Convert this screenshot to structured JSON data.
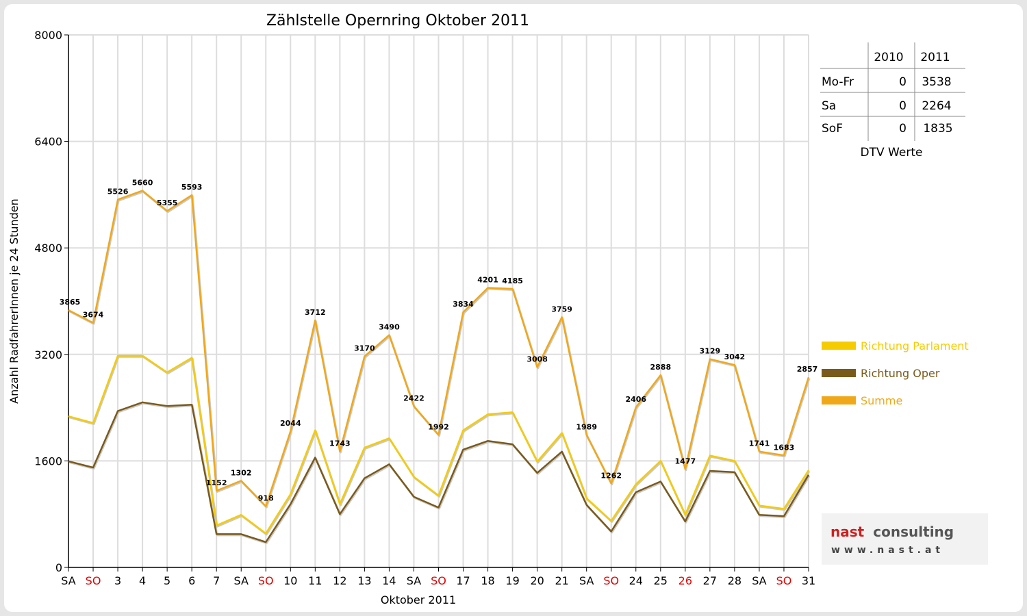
{
  "chart_data": {
    "type": "line",
    "title": "Zählstelle Opernring Oktober 2011",
    "xlabel": "Oktober 2011",
    "ylabel": "Anzahl RadfahrerInnen je 24 Stunden",
    "ylim": [
      0,
      8000
    ],
    "yticks": [
      0,
      1600,
      3200,
      4800,
      6400,
      8000
    ],
    "grid": true,
    "legend_position": "right",
    "categories": [
      "SA",
      "SO",
      "3",
      "4",
      "5",
      "6",
      "7",
      "SA",
      "SO",
      "10",
      "11",
      "12",
      "13",
      "14",
      "SA",
      "SO",
      "17",
      "18",
      "19",
      "20",
      "21",
      "SA",
      "SO",
      "24",
      "25",
      "26",
      "27",
      "28",
      "SA",
      "SO",
      "31"
    ],
    "red_categories": [
      1,
      8,
      15,
      22,
      25,
      29
    ],
    "series": [
      {
        "name": "Richtung Parlament",
        "color": "#f5cc00",
        "values": [
          2270,
          2170,
          3180,
          3180,
          2930,
          3150,
          630,
          790,
          510,
          1100,
          2060,
          950,
          1800,
          1940,
          1360,
          1080,
          2060,
          2300,
          2330,
          1590,
          2020,
          1040,
          700,
          1250,
          1600,
          790,
          1680,
          1600,
          930,
          880,
          1460
        ]
      },
      {
        "name": "Richtung Oper",
        "color": "#7a5a1a",
        "values": [
          1595,
          1500,
          2350,
          2480,
          2425,
          2445,
          500,
          500,
          380,
          950,
          1650,
          800,
          1340,
          1550,
          1060,
          900,
          1770,
          1900,
          1850,
          1420,
          1740,
          940,
          540,
          1130,
          1290,
          690,
          1450,
          1430,
          790,
          770,
          1390
        ]
      },
      {
        "name": "Summe",
        "color": "#f0a818",
        "values": [
          3865,
          3674,
          5526,
          5660,
          5355,
          5593,
          1152,
          1302,
          918,
          2044,
          3712,
          1743,
          3170,
          3490,
          2422,
          1992,
          3834,
          4201,
          4185,
          3008,
          3759,
          1989,
          1262,
          2406,
          2888,
          1477,
          3129,
          3042,
          1741,
          1683,
          2857
        ],
        "labels": [
          "3865",
          "3674",
          "5526",
          "5660",
          "5355",
          "5593",
          "1152",
          "1302",
          "918",
          "2044",
          "3712",
          "1743",
          "3170",
          "3490",
          "2422",
          "1992",
          "3834",
          "4201",
          "4185",
          "3008",
          "3759",
          "1989",
          "1262",
          "2406",
          "2888",
          "1477",
          "3129",
          "3042",
          "1741",
          "1683",
          "2857"
        ]
      }
    ]
  },
  "dtv_table": {
    "caption": "DTV Werte",
    "headers": [
      "",
      "2010",
      "2011"
    ],
    "rows": [
      {
        "label": "Mo-Fr",
        "v2010": "0",
        "v2011": "3538"
      },
      {
        "label": "Sa",
        "v2010": "0",
        "v2011": "2264"
      },
      {
        "label": "SoF",
        "v2010": "0",
        "v2011": "1835"
      }
    ]
  },
  "logo": {
    "name_part1": "nast",
    "name_part2": "consulting",
    "url": "www.nast.at"
  }
}
